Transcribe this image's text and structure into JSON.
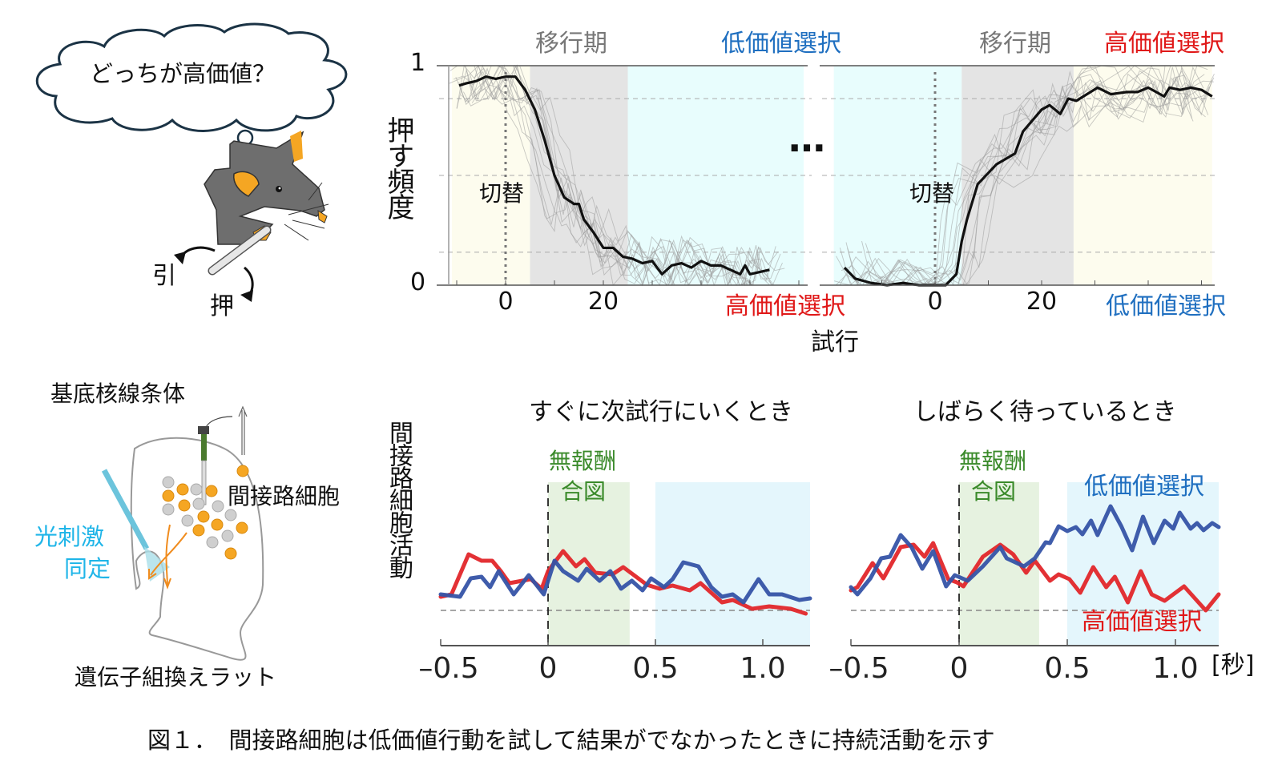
{
  "illustration": {
    "thought_bubble": "どっちが高価値？",
    "pull_label": "引",
    "push_label": "押",
    "striatum_label": "基底核線条体",
    "indirect_cells_label": "間接路細胞",
    "optostim_label_line1": "光刺激",
    "optostim_label_line2": "同定",
    "rat_label": "遺伝子組換えラット",
    "colors": {
      "cell_indirect": "#f5a623",
      "cell_other": "#cfcfcf",
      "rat_body": "#707070",
      "fiber": "#6cc4dc",
      "electrode": "#4a7a2e"
    }
  },
  "caption": "図１．　間接路細胞は低価値行動を試して結果がでなかったときに持続活動を示す",
  "top": {
    "ylabel": "押す頻度",
    "xlabel": "試行",
    "ellipsis": "…",
    "left_panel": {
      "phase_transition": "移行期",
      "phase_top_right": "低価値選択",
      "phase_bottom_right": "高価値選択",
      "switch_label": "切替"
    },
    "right_panel": {
      "phase_transition": "移行期",
      "phase_top_right": "高価値選択",
      "phase_bottom_right": "低価値選択",
      "switch_label": "切替"
    }
  },
  "bottom": {
    "ylabel": "間接路細胞活動",
    "left_title": "すぐに次試行にいくとき",
    "right_title": "しばらく待っているとき",
    "cue_line1": "無報酬",
    "cue_line2": "合図",
    "legend_low": "低価値選択",
    "legend_high": "高価値選択",
    "unit": "[秒]"
  },
  "colors": {
    "low_value": "#1f6fc0",
    "high_value": "#e01818",
    "low_trace": "#3553a6",
    "high_trace": "#e2262a",
    "cue": "#3a8a2a",
    "transition_bg": "#e4e4e4",
    "low_bg": "#e8fdfd",
    "high_bg": "#fdfcee",
    "cue_bg": "#e6f2e0",
    "delay_bg": "#e4f6fc"
  },
  "chart_data": [
    {
      "type": "line",
      "panel": "top-left",
      "xlabel": "試行",
      "ylabel": "押す頻度",
      "xlim": [
        -11,
        61
      ],
      "ylim": [
        0,
        1
      ],
      "xticks": [
        "0",
        "20"
      ],
      "yticks": [
        "0",
        "1"
      ],
      "grid": "dashed horizontal at 0.15, 0.5, 0.85",
      "regions": [
        {
          "label": "",
          "from": -11,
          "to": 5,
          "color": "#fdfcee"
        },
        {
          "label": "移行期",
          "from": 5,
          "to": 25,
          "color": "#e4e4e4"
        },
        {
          "label": "低価値選択",
          "from": 25,
          "to": 61,
          "color": "#e8fdfd"
        }
      ],
      "switch_trial": 0,
      "series": [
        {
          "x": [
            -9.5,
            -8,
            -6,
            -4,
            -2,
            0,
            2,
            4,
            6,
            8,
            10,
            12,
            14,
            15,
            16,
            18,
            20,
            22,
            24,
            26,
            28,
            30,
            32,
            34,
            36,
            38,
            40,
            42,
            44,
            46,
            48,
            49,
            50,
            52,
            54
          ],
          "y": [
            0.91,
            0.92,
            0.93,
            0.95,
            0.94,
            0.95,
            0.95,
            0.89,
            0.8,
            0.66,
            0.5,
            0.4,
            0.37,
            0.37,
            0.3,
            0.24,
            0.17,
            0.17,
            0.13,
            0.12,
            0.1,
            0.11,
            0.05,
            0.09,
            0.1,
            0.08,
            0.11,
            0.09,
            0.09,
            0.07,
            0.05,
            0.09,
            0.05,
            0.06,
            0.07
          ]
        }
      ]
    },
    {
      "type": "line",
      "panel": "top-right",
      "xlabel": "試行",
      "ylabel": "押す頻度",
      "xlim": [
        -19,
        52
      ],
      "ylim": [
        0,
        1
      ],
      "xticks": [
        "0",
        "20"
      ],
      "yticks": [],
      "grid": "dashed horizontal at 0.15, 0.5, 0.85",
      "regions": [
        {
          "label": "",
          "from": -19,
          "to": 5,
          "color": "#e8fdfd"
        },
        {
          "label": "移行期",
          "from": 5,
          "to": 26,
          "color": "#e4e4e4"
        },
        {
          "label": "高価値選択",
          "from": 26,
          "to": 52,
          "color": "#fdfcee"
        }
      ],
      "switch_trial": 0,
      "series": [
        {
          "x": [
            -17,
            -15,
            -12,
            -9,
            -6,
            -3,
            0,
            2,
            4,
            5,
            6,
            8,
            11.5,
            15,
            16.5,
            20,
            21.5,
            23.5,
            25,
            26.5,
            30.5,
            33,
            36,
            38,
            40,
            43,
            44,
            46,
            48,
            50,
            52
          ],
          "y": [
            0.08,
            0.03,
            0.01,
            0.0,
            0.01,
            0.0,
            0.0,
            0.0,
            0.05,
            0.2,
            0.3,
            0.46,
            0.55,
            0.6,
            0.7,
            0.8,
            0.82,
            0.78,
            0.85,
            0.84,
            0.9,
            0.87,
            0.88,
            0.88,
            0.9,
            0.86,
            0.9,
            0.89,
            0.9,
            0.89,
            0.86
          ]
        }
      ]
    },
    {
      "type": "line",
      "panel": "bottom-left",
      "title": "すぐに次試行にいくとき",
      "ylabel": "間接路細胞活動",
      "xlim": [
        -0.5,
        1.22
      ],
      "ylim": [
        -0.2,
        1.4
      ],
      "xticks": [
        "-0.5",
        "0",
        "0.5",
        "1.0"
      ],
      "baseline": 0,
      "regions": [
        {
          "label": "無報酬 合図",
          "from": 0,
          "to": 0.38,
          "color": "#e6f2e0"
        },
        {
          "label": "",
          "from": 0.5,
          "to": 1.22,
          "color": "#e4f6fc"
        }
      ],
      "series": [
        {
          "name": "低価値選択",
          "color": "#3553a6",
          "x": [
            -0.5,
            -0.41,
            -0.36,
            -0.31,
            -0.27,
            -0.23,
            -0.16,
            -0.09,
            -0.02,
            0.03,
            0.07,
            0.14,
            0.18,
            0.24,
            0.29,
            0.34,
            0.39,
            0.44,
            0.48,
            0.54,
            0.58,
            0.63,
            0.7,
            0.76,
            0.81,
            0.86,
            0.91,
            0.98,
            1.03,
            1.09,
            1.17,
            1.22
          ],
          "y": [
            0.2,
            0.17,
            0.4,
            0.42,
            0.29,
            0.49,
            0.2,
            0.44,
            0.2,
            0.62,
            0.49,
            0.37,
            0.52,
            0.37,
            0.49,
            0.27,
            0.37,
            0.25,
            0.4,
            0.29,
            0.39,
            0.6,
            0.55,
            0.29,
            0.17,
            0.2,
            0.1,
            0.39,
            0.2,
            0.2,
            0.13,
            0.15
          ]
        },
        {
          "name": "高価値選択",
          "color": "#e2262a",
          "x": [
            -0.5,
            -0.45,
            -0.37,
            -0.31,
            -0.26,
            -0.22,
            -0.18,
            -0.12,
            -0.08,
            -0.03,
            0.0,
            0.07,
            0.13,
            0.17,
            0.22,
            0.3,
            0.35,
            0.41,
            0.46,
            0.52,
            0.58,
            0.66,
            0.71,
            0.76,
            0.81,
            0.86,
            0.95,
            1.03,
            1.13,
            1.2
          ],
          "y": [
            0.17,
            0.2,
            0.7,
            0.62,
            0.62,
            0.49,
            0.34,
            0.37,
            0.39,
            0.27,
            0.49,
            0.74,
            0.55,
            0.64,
            0.47,
            0.45,
            0.54,
            0.42,
            0.32,
            0.27,
            0.31,
            0.25,
            0.34,
            0.22,
            0.1,
            0.13,
            0.02,
            0.05,
            0.02,
            -0.04
          ]
        }
      ]
    },
    {
      "type": "line",
      "panel": "bottom-right",
      "title": "しばらく待っているとき",
      "xlabel": "[秒]",
      "xlim": [
        -0.5,
        1.2
      ],
      "ylim": [
        -0.2,
        1.4
      ],
      "xticks": [
        "-0.5",
        "0",
        "0.5",
        "1.0"
      ],
      "baseline": 0,
      "regions": [
        {
          "label": "無報酬 合図",
          "from": 0,
          "to": 0.37,
          "color": "#e6f2e0"
        },
        {
          "label": "",
          "from": 0.5,
          "to": 1.2,
          "color": "#e4f6fc"
        }
      ],
      "series": [
        {
          "name": "低価値選択",
          "color": "#3553a6",
          "x": [
            -0.5,
            -0.47,
            -0.41,
            -0.36,
            -0.32,
            -0.27,
            -0.22,
            -0.17,
            -0.12,
            -0.06,
            -0.02,
            0.04,
            0.11,
            0.19,
            0.22,
            0.3,
            0.35,
            0.4,
            0.42,
            0.46,
            0.5,
            0.54,
            0.57,
            0.61,
            0.64,
            0.7,
            0.75,
            0.8,
            0.85,
            0.9,
            0.95,
            0.99,
            1.02,
            1.07,
            1.1,
            1.13,
            1.17,
            1.2
          ],
          "y": [
            0.29,
            0.2,
            0.4,
            0.65,
            0.67,
            0.94,
            0.79,
            0.52,
            0.74,
            0.3,
            0.44,
            0.37,
            0.55,
            0.79,
            0.65,
            0.55,
            0.65,
            0.85,
            0.84,
            1.05,
            0.99,
            1.04,
            0.95,
            1.12,
            0.94,
            1.3,
            1.05,
            0.75,
            1.17,
            0.84,
            1.12,
            1.02,
            1.22,
            1.02,
            1.09,
            1.0,
            1.09,
            1.04
          ]
        },
        {
          "name": "高価値選択",
          "color": "#e2262a",
          "x": [
            -0.5,
            -0.47,
            -0.4,
            -0.35,
            -0.27,
            -0.21,
            -0.16,
            -0.12,
            -0.05,
            -0.01,
            0.02,
            0.11,
            0.19,
            0.25,
            0.31,
            0.35,
            0.42,
            0.46,
            0.51,
            0.56,
            0.62,
            0.68,
            0.72,
            0.78,
            0.84,
            0.89,
            0.95,
            1.04,
            1.09,
            1.14,
            1.2
          ],
          "y": [
            0.25,
            0.29,
            0.59,
            0.4,
            0.79,
            0.82,
            0.67,
            0.84,
            0.39,
            0.35,
            0.3,
            0.67,
            0.82,
            0.7,
            0.47,
            0.62,
            0.37,
            0.45,
            0.39,
            0.22,
            0.54,
            0.29,
            0.42,
            0.1,
            0.49,
            0.2,
            0.12,
            0.3,
            0.15,
            0.0,
            0.2
          ]
        }
      ]
    }
  ]
}
